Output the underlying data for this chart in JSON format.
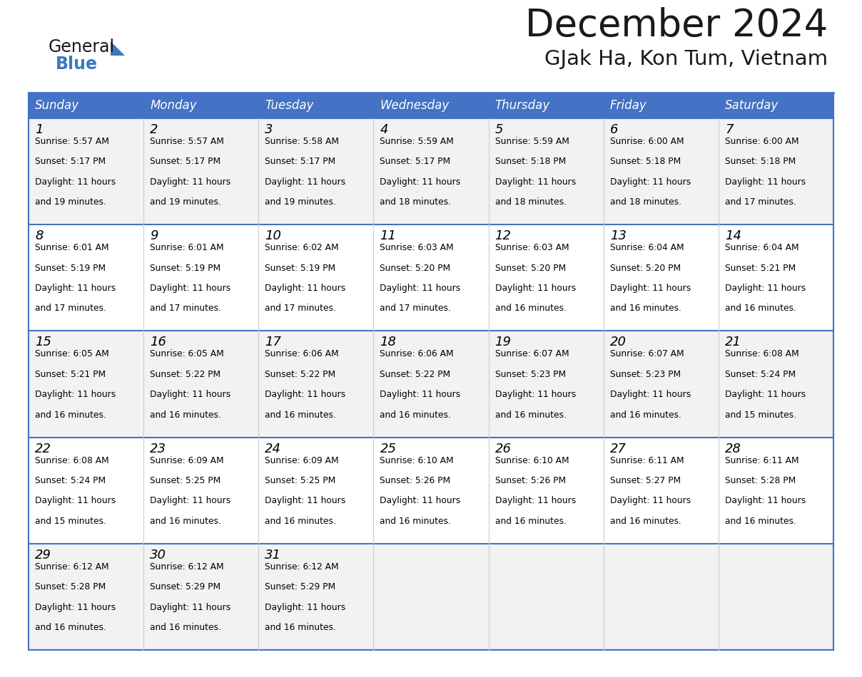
{
  "title": "December 2024",
  "subtitle": "GJak Ha, Kon Tum, Vietnam",
  "days_of_week": [
    "Sunday",
    "Monday",
    "Tuesday",
    "Wednesday",
    "Thursday",
    "Friday",
    "Saturday"
  ],
  "header_bg": "#4472C4",
  "header_text_color": "#FFFFFF",
  "cell_bg_alt": "#F2F2F2",
  "cell_bg_white": "#FFFFFF",
  "border_color": "#4472C4",
  "line_color": "#AAAAAA",
  "text_color": "#000000",
  "title_color": "#1a1a1a",
  "subtitle_color": "#1a1a1a",
  "logo_general_color": "#1a1a1a",
  "logo_blue_color": "#3a7abf",
  "calendar_data": [
    [
      {
        "day": 1,
        "sunrise": "5:57 AM",
        "sunset": "5:17 PM",
        "daylight": "11 hours and 19 minutes."
      },
      {
        "day": 2,
        "sunrise": "5:57 AM",
        "sunset": "5:17 PM",
        "daylight": "11 hours and 19 minutes."
      },
      {
        "day": 3,
        "sunrise": "5:58 AM",
        "sunset": "5:17 PM",
        "daylight": "11 hours and 19 minutes."
      },
      {
        "day": 4,
        "sunrise": "5:59 AM",
        "sunset": "5:17 PM",
        "daylight": "11 hours and 18 minutes."
      },
      {
        "day": 5,
        "sunrise": "5:59 AM",
        "sunset": "5:18 PM",
        "daylight": "11 hours and 18 minutes."
      },
      {
        "day": 6,
        "sunrise": "6:00 AM",
        "sunset": "5:18 PM",
        "daylight": "11 hours and 18 minutes."
      },
      {
        "day": 7,
        "sunrise": "6:00 AM",
        "sunset": "5:18 PM",
        "daylight": "11 hours and 17 minutes."
      }
    ],
    [
      {
        "day": 8,
        "sunrise": "6:01 AM",
        "sunset": "5:19 PM",
        "daylight": "11 hours and 17 minutes."
      },
      {
        "day": 9,
        "sunrise": "6:01 AM",
        "sunset": "5:19 PM",
        "daylight": "11 hours and 17 minutes."
      },
      {
        "day": 10,
        "sunrise": "6:02 AM",
        "sunset": "5:19 PM",
        "daylight": "11 hours and 17 minutes."
      },
      {
        "day": 11,
        "sunrise": "6:03 AM",
        "sunset": "5:20 PM",
        "daylight": "11 hours and 17 minutes."
      },
      {
        "day": 12,
        "sunrise": "6:03 AM",
        "sunset": "5:20 PM",
        "daylight": "11 hours and 16 minutes."
      },
      {
        "day": 13,
        "sunrise": "6:04 AM",
        "sunset": "5:20 PM",
        "daylight": "11 hours and 16 minutes."
      },
      {
        "day": 14,
        "sunrise": "6:04 AM",
        "sunset": "5:21 PM",
        "daylight": "11 hours and 16 minutes."
      }
    ],
    [
      {
        "day": 15,
        "sunrise": "6:05 AM",
        "sunset": "5:21 PM",
        "daylight": "11 hours and 16 minutes."
      },
      {
        "day": 16,
        "sunrise": "6:05 AM",
        "sunset": "5:22 PM",
        "daylight": "11 hours and 16 minutes."
      },
      {
        "day": 17,
        "sunrise": "6:06 AM",
        "sunset": "5:22 PM",
        "daylight": "11 hours and 16 minutes."
      },
      {
        "day": 18,
        "sunrise": "6:06 AM",
        "sunset": "5:22 PM",
        "daylight": "11 hours and 16 minutes."
      },
      {
        "day": 19,
        "sunrise": "6:07 AM",
        "sunset": "5:23 PM",
        "daylight": "11 hours and 16 minutes."
      },
      {
        "day": 20,
        "sunrise": "6:07 AM",
        "sunset": "5:23 PM",
        "daylight": "11 hours and 16 minutes."
      },
      {
        "day": 21,
        "sunrise": "6:08 AM",
        "sunset": "5:24 PM",
        "daylight": "11 hours and 15 minutes."
      }
    ],
    [
      {
        "day": 22,
        "sunrise": "6:08 AM",
        "sunset": "5:24 PM",
        "daylight": "11 hours and 15 minutes."
      },
      {
        "day": 23,
        "sunrise": "6:09 AM",
        "sunset": "5:25 PM",
        "daylight": "11 hours and 16 minutes."
      },
      {
        "day": 24,
        "sunrise": "6:09 AM",
        "sunset": "5:25 PM",
        "daylight": "11 hours and 16 minutes."
      },
      {
        "day": 25,
        "sunrise": "6:10 AM",
        "sunset": "5:26 PM",
        "daylight": "11 hours and 16 minutes."
      },
      {
        "day": 26,
        "sunrise": "6:10 AM",
        "sunset": "5:26 PM",
        "daylight": "11 hours and 16 minutes."
      },
      {
        "day": 27,
        "sunrise": "6:11 AM",
        "sunset": "5:27 PM",
        "daylight": "11 hours and 16 minutes."
      },
      {
        "day": 28,
        "sunrise": "6:11 AM",
        "sunset": "5:28 PM",
        "daylight": "11 hours and 16 minutes."
      }
    ],
    [
      {
        "day": 29,
        "sunrise": "6:12 AM",
        "sunset": "5:28 PM",
        "daylight": "11 hours and 16 minutes."
      },
      {
        "day": 30,
        "sunrise": "6:12 AM",
        "sunset": "5:29 PM",
        "daylight": "11 hours and 16 minutes."
      },
      {
        "day": 31,
        "sunrise": "6:12 AM",
        "sunset": "5:29 PM",
        "daylight": "11 hours and 16 minutes."
      },
      null,
      null,
      null,
      null
    ]
  ]
}
